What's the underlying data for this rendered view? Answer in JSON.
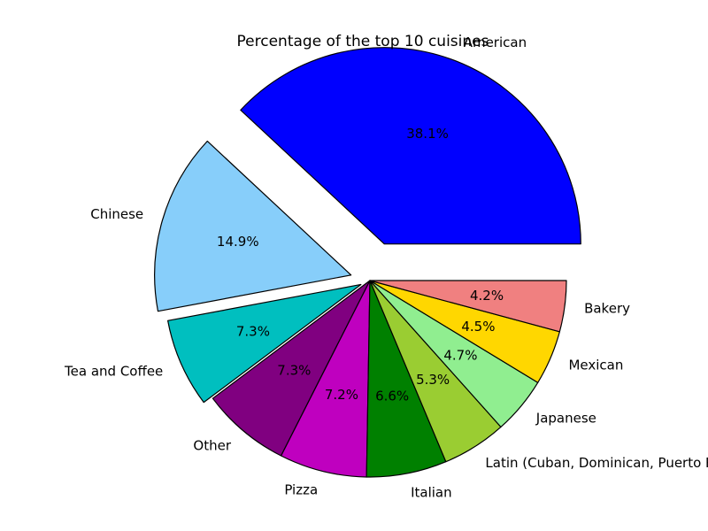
{
  "chart_data": {
    "type": "pie",
    "title": "Percentage of the top 10 cuisines",
    "start_angle_deg": 0,
    "direction": "counterclockwise",
    "slices": [
      {
        "label": "American",
        "value": 38.1,
        "pct_label": "38.1%",
        "color": "#0000ff",
        "explode": 0.2
      },
      {
        "label": "Chinese",
        "value": 14.9,
        "pct_label": "14.9%",
        "color": "#87cefa",
        "explode": 0.1
      },
      {
        "label": "Tea and Coffee",
        "value": 7.3,
        "pct_label": "7.3%",
        "color": "#00bfbf",
        "explode": 0.05
      },
      {
        "label": "Other",
        "value": 7.3,
        "pct_label": "7.3%",
        "color": "#800080",
        "explode": 0
      },
      {
        "label": "Pizza",
        "value": 7.2,
        "pct_label": "7.2%",
        "color": "#bf00bf",
        "explode": 0
      },
      {
        "label": "Italian",
        "value": 6.6,
        "pct_label": "6.6%",
        "color": "#008000",
        "explode": 0
      },
      {
        "label": "Latin (Cuban, Dominican, Puerto Rican, South & Central American)",
        "value": 5.3,
        "pct_label": "5.3%",
        "color": "#9acd32",
        "explode": 0
      },
      {
        "label": "Japanese",
        "value": 4.7,
        "pct_label": "4.7%",
        "color": "#90ee90",
        "explode": 0
      },
      {
        "label": "Mexican",
        "value": 4.5,
        "pct_label": "4.5%",
        "color": "#ffd700",
        "explode": 0
      },
      {
        "label": "Bakery",
        "value": 4.2,
        "pct_label": "4.2%",
        "color": "#f08080",
        "explode": 0
      }
    ]
  }
}
